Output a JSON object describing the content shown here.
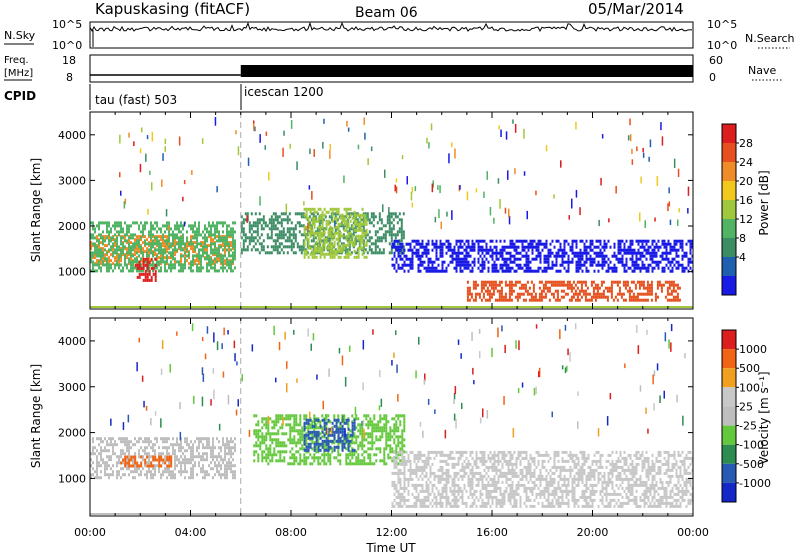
{
  "header": {
    "station": "Kapuskasing (fitACF)",
    "beam": "Beam 06",
    "date": "05/Mar/2014"
  },
  "noise_panel": {
    "left_label": "N.Sky",
    "right_label": "N.Search",
    "left_ticks": [
      "10^5",
      "10^0"
    ],
    "right_ticks": [
      "10^5",
      "10^0"
    ]
  },
  "freq_panel": {
    "left_label_line1": "Freq.",
    "left_label_line2": "[MHz]",
    "right_label": "Nave",
    "left_ticks": [
      "18",
      "8"
    ],
    "right_ticks": [
      "60",
      "0"
    ]
  },
  "cpid": {
    "label": "CPID",
    "segments": [
      {
        "name": "tau (fast) 503",
        "start_hour": 0
      },
      {
        "name": "icescan 1200",
        "start_hour": 6
      }
    ]
  },
  "chart_data": [
    {
      "type": "heatmap",
      "title": "",
      "parameter": "Power",
      "ylabel": "Slant Range [km]",
      "xlabel": "",
      "ylim": [
        180,
        4500
      ],
      "xlim": [
        0,
        24
      ],
      "yticks": [
        1000,
        2000,
        3000,
        4000
      ],
      "colorbar": {
        "label": "Power [dB]",
        "ticks": [
          "4",
          "8",
          "12",
          "16",
          "20",
          "24",
          "28"
        ],
        "colors": [
          "#1a1ae6",
          "#1f5fb0",
          "#3c8c64",
          "#50b464",
          "#a0c83c",
          "#f0c81e",
          "#f08c28",
          "#e6501e",
          "#dc1e1e"
        ]
      },
      "regions": [
        {
          "t0": 0.0,
          "t1": 5.7,
          "r0": 1200,
          "r1": 1800,
          "color": "#f08c28"
        },
        {
          "t0": 0.0,
          "t1": 5.8,
          "r0": 1000,
          "r1": 2100,
          "color": "#50b464"
        },
        {
          "t0": 1.7,
          "t1": 2.6,
          "r0": 800,
          "r1": 1300,
          "color": "#dc1e1e"
        },
        {
          "t0": 6.0,
          "t1": 12.5,
          "r0": 1400,
          "r1": 2300,
          "color": "#3c8c64"
        },
        {
          "t0": 8.5,
          "t1": 11.0,
          "r0": 1300,
          "r1": 2400,
          "color": "#a0c83c"
        },
        {
          "t0": 12.0,
          "t1": 24.0,
          "r0": 1000,
          "r1": 1700,
          "color": "#1a1ae6"
        },
        {
          "t0": 15.0,
          "t1": 23.5,
          "r0": 400,
          "r1": 800,
          "color": "#e6501e"
        }
      ]
    },
    {
      "type": "heatmap",
      "title": "",
      "parameter": "Velocity",
      "ylabel": "Slant Range [km]",
      "xlabel": "Time UT",
      "ylim": [
        180,
        4500
      ],
      "xlim": [
        0,
        24
      ],
      "yticks": [
        1000,
        2000,
        3000,
        4000
      ],
      "xtick_labels": [
        "00:00",
        "04:00",
        "08:00",
        "12:00",
        "16:00",
        "20:00",
        "00:00"
      ],
      "colorbar": {
        "label": "Velocity [m s⁻¹]",
        "ticks": [
          "1000",
          "500",
          "100",
          "25",
          "-25",
          "-100",
          "-500",
          "-1000"
        ],
        "colors": [
          "#1428c8",
          "#285ab4",
          "#2d8c50",
          "#64c83c",
          "#bebebe",
          "#c8c8c8",
          "#f0a01e",
          "#f06414",
          "#dc1e1e"
        ]
      },
      "regions": [
        {
          "t0": 0.0,
          "t1": 5.8,
          "r0": 1000,
          "r1": 1900,
          "color": "#bebebe"
        },
        {
          "t0": 1.2,
          "t1": 3.2,
          "r0": 1250,
          "r1": 1500,
          "color": "#f06414"
        },
        {
          "t0": 6.5,
          "t1": 12.5,
          "r0": 1300,
          "r1": 2400,
          "color": "#64c83c"
        },
        {
          "t0": 8.5,
          "t1": 10.5,
          "r0": 1600,
          "r1": 2300,
          "color": "#285ab4"
        },
        {
          "t0": 12.0,
          "t1": 24.0,
          "r0": 400,
          "r1": 1600,
          "color": "#c8c8c8"
        }
      ]
    }
  ]
}
